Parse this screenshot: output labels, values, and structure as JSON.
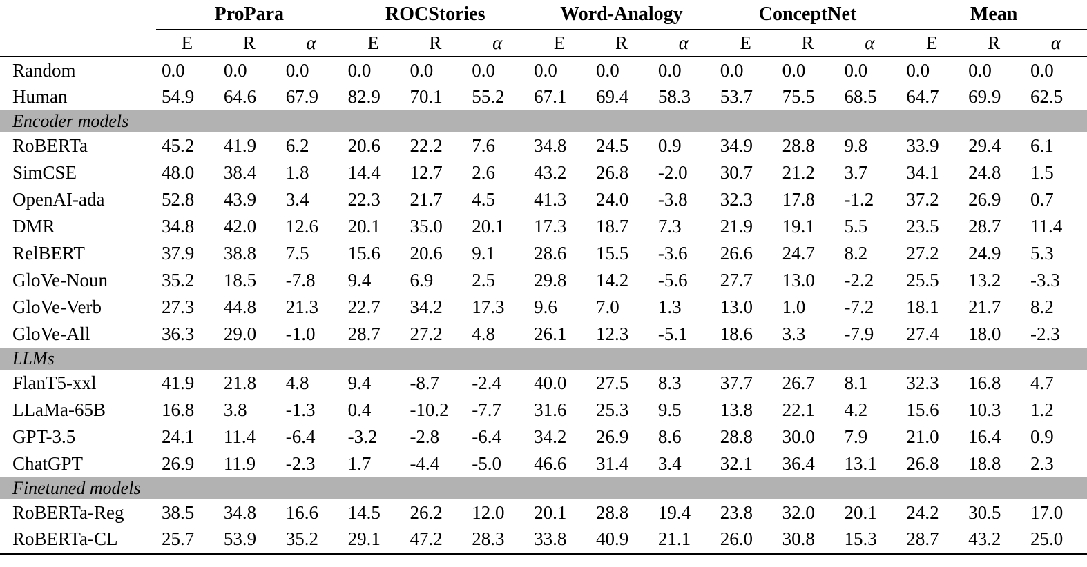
{
  "table": {
    "colors": {
      "section_band": "#b2b2b2",
      "rule": "#000000",
      "background": "#ffffff"
    },
    "corner_label": "",
    "group_headers": [
      {
        "label": "ProPara",
        "span": 3
      },
      {
        "label": "ROCStories",
        "span": 3
      },
      {
        "label": "Word-Analogy",
        "span": 3
      },
      {
        "label": "ConceptNet",
        "span": 3
      },
      {
        "label": "Mean",
        "span": 3
      }
    ],
    "metric_headers": [
      {
        "label": "E",
        "italic": false
      },
      {
        "label": "R",
        "italic": false
      },
      {
        "label": "α",
        "italic": true
      }
    ],
    "sections": [
      {
        "title": null,
        "rows": [
          {
            "model": "Random",
            "values": [
              "0.0",
              "0.0",
              "0.0",
              "0.0",
              "0.0",
              "0.0",
              "0.0",
              "0.0",
              "0.0",
              "0.0",
              "0.0",
              "0.0",
              "0.0",
              "0.0",
              "0.0"
            ]
          },
          {
            "model": "Human",
            "values": [
              "54.9",
              "64.6",
              "67.9",
              "82.9",
              "70.1",
              "55.2",
              "67.1",
              "69.4",
              "58.3",
              "53.7",
              "75.5",
              "68.5",
              "64.7",
              "69.9",
              "62.5"
            ]
          }
        ]
      },
      {
        "title": "Encoder models",
        "rows": [
          {
            "model": "RoBERTa",
            "values": [
              "45.2",
              "41.9",
              "6.2",
              "20.6",
              "22.2",
              "7.6",
              "34.8",
              "24.5",
              "0.9",
              "34.9",
              "28.8",
              "9.8",
              "33.9",
              "29.4",
              "6.1"
            ]
          },
          {
            "model": "SimCSE",
            "values": [
              "48.0",
              "38.4",
              "1.8",
              "14.4",
              "12.7",
              "2.6",
              "43.2",
              "26.8",
              "-2.0",
              "30.7",
              "21.2",
              "3.7",
              "34.1",
              "24.8",
              "1.5"
            ]
          },
          {
            "model": "OpenAI-ada",
            "values": [
              "52.8",
              "43.9",
              "3.4",
              "22.3",
              "21.7",
              "4.5",
              "41.3",
              "24.0",
              "-3.8",
              "32.3",
              "17.8",
              "-1.2",
              "37.2",
              "26.9",
              "0.7"
            ]
          },
          {
            "model": "DMR",
            "values": [
              "34.8",
              "42.0",
              "12.6",
              "20.1",
              "35.0",
              "20.1",
              "17.3",
              "18.7",
              "7.3",
              "21.9",
              "19.1",
              "5.5",
              "23.5",
              "28.7",
              "11.4"
            ]
          },
          {
            "model": "RelBERT",
            "values": [
              "37.9",
              "38.8",
              "7.5",
              "15.6",
              "20.6",
              "9.1",
              "28.6",
              "15.5",
              "-3.6",
              "26.6",
              "24.7",
              "8.2",
              "27.2",
              "24.9",
              "5.3"
            ]
          },
          {
            "model": "GloVe-Noun",
            "values": [
              "35.2",
              "18.5",
              "-7.8",
              "9.4",
              "6.9",
              "2.5",
              "29.8",
              "14.2",
              "-5.6",
              "27.7",
              "13.0",
              "-2.2",
              "25.5",
              "13.2",
              "-3.3"
            ]
          },
          {
            "model": "GloVe-Verb",
            "values": [
              "27.3",
              "44.8",
              "21.3",
              "22.7",
              "34.2",
              "17.3",
              "9.6",
              "7.0",
              "1.3",
              "13.0",
              "1.0",
              "-7.2",
              "18.1",
              "21.7",
              "8.2"
            ]
          },
          {
            "model": "GloVe-All",
            "values": [
              "36.3",
              "29.0",
              "-1.0",
              "28.7",
              "27.2",
              "4.8",
              "26.1",
              "12.3",
              "-5.1",
              "18.6",
              "3.3",
              "-7.9",
              "27.4",
              "18.0",
              "-2.3"
            ]
          }
        ]
      },
      {
        "title": "LLMs",
        "rows": [
          {
            "model": "FlanT5-xxl",
            "values": [
              "41.9",
              "21.8",
              "4.8",
              "9.4",
              "-8.7",
              "-2.4",
              "40.0",
              "27.5",
              "8.3",
              "37.7",
              "26.7",
              "8.1",
              "32.3",
              "16.8",
              "4.7"
            ]
          },
          {
            "model": "LLaMa-65B",
            "values": [
              "16.8",
              "3.8",
              "-1.3",
              "0.4",
              "-10.2",
              "-7.7",
              "31.6",
              "25.3",
              "9.5",
              "13.8",
              "22.1",
              "4.2",
              "15.6",
              "10.3",
              "1.2"
            ]
          },
          {
            "model": "GPT-3.5",
            "values": [
              "24.1",
              "11.4",
              "-6.4",
              "-3.2",
              "-2.8",
              "-6.4",
              "34.2",
              "26.9",
              "8.6",
              "28.8",
              "30.0",
              "7.9",
              "21.0",
              "16.4",
              "0.9"
            ]
          },
          {
            "model": "ChatGPT",
            "values": [
              "26.9",
              "11.9",
              "-2.3",
              "1.7",
              "-4.4",
              "-5.0",
              "46.6",
              "31.4",
              "3.4",
              "32.1",
              "36.4",
              "13.1",
              "26.8",
              "18.8",
              "2.3"
            ]
          }
        ]
      },
      {
        "title": "Finetuned models",
        "rows": [
          {
            "model": "RoBERTa-Reg",
            "values": [
              "38.5",
              "34.8",
              "16.6",
              "14.5",
              "26.2",
              "12.0",
              "20.1",
              "28.8",
              "19.4",
              "23.8",
              "32.0",
              "20.1",
              "24.2",
              "30.5",
              "17.0"
            ]
          },
          {
            "model": "RoBERTa-CL",
            "values": [
              "25.7",
              "53.9",
              "35.2",
              "29.1",
              "47.2",
              "28.3",
              "33.8",
              "40.9",
              "21.1",
              "26.0",
              "30.8",
              "15.3",
              "28.7",
              "43.2",
              "25.0"
            ]
          }
        ]
      }
    ]
  }
}
